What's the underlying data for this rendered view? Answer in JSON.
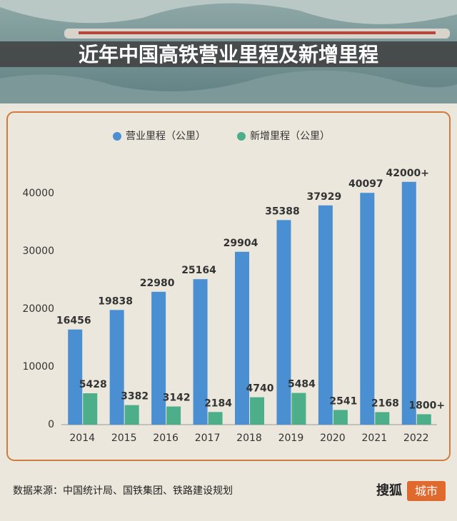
{
  "chart_data": {
    "type": "bar",
    "title": "近年中国高铁营业里程及新增里程",
    "categories": [
      "2014",
      "2015",
      "2016",
      "2017",
      "2018",
      "2019",
      "2020",
      "2021",
      "2022"
    ],
    "series": [
      {
        "name": "营业里程（公里）",
        "color": "#4a8fd2",
        "values": [
          16456,
          19838,
          22980,
          25164,
          29904,
          35388,
          37929,
          40097,
          42000
        ],
        "value_labels": [
          "16456",
          "19838",
          "22980",
          "25164",
          "29904",
          "35388",
          "37929",
          "40097",
          "42000+"
        ]
      },
      {
        "name": "新增里程（公里）",
        "color": "#4caf8a",
        "values": [
          5428,
          3382,
          3142,
          2184,
          4740,
          5484,
          2541,
          2168,
          1800
        ],
        "value_labels": [
          "5428",
          "3382",
          "3142",
          "2184",
          "4740",
          "5484",
          "2541",
          "2168",
          "1800+"
        ]
      }
    ],
    "ylim": [
      0,
      45000
    ],
    "yticks": [
      0,
      10000,
      20000,
      30000,
      40000
    ],
    "grid": false,
    "legend": "top"
  },
  "footer": {
    "source": "数据来源：中国统计局、国铁集团、铁路建设规划",
    "brand": "搜狐",
    "brand_tag": "城市"
  }
}
